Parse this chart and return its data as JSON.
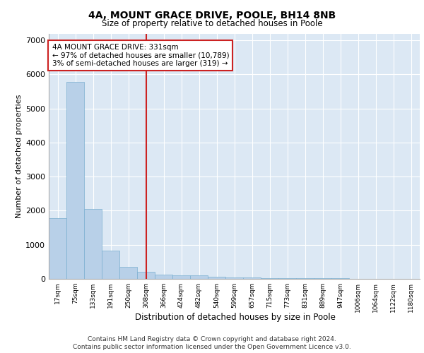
{
  "title_line1": "4A, MOUNT GRACE DRIVE, POOLE, BH14 8NB",
  "title_line2": "Size of property relative to detached houses in Poole",
  "xlabel": "Distribution of detached houses by size in Poole",
  "ylabel": "Number of detached properties",
  "bar_color": "#b8d0e8",
  "bar_edge_color": "#7aafd0",
  "vline_color": "#cc2222",
  "vline_x": 5.5,
  "annotation_text": "4A MOUNT GRACE DRIVE: 331sqm\n← 97% of detached houses are smaller (10,789)\n3% of semi-detached houses are larger (319) →",
  "annotation_box_color": "#cc2222",
  "footer_line1": "Contains HM Land Registry data © Crown copyright and database right 2024.",
  "footer_line2": "Contains public sector information licensed under the Open Government Licence v3.0.",
  "bin_labels": [
    "17sqm",
    "75sqm",
    "133sqm",
    "191sqm",
    "250sqm",
    "308sqm",
    "366sqm",
    "424sqm",
    "482sqm",
    "540sqm",
    "599sqm",
    "657sqm",
    "715sqm",
    "773sqm",
    "831sqm",
    "889sqm",
    "947sqm",
    "1006sqm",
    "1064sqm",
    "1122sqm",
    "1180sqm"
  ],
  "bar_heights": [
    1780,
    5780,
    2060,
    820,
    350,
    200,
    130,
    110,
    100,
    70,
    50,
    40,
    30,
    30,
    25,
    20,
    15,
    10,
    10,
    5,
    5
  ],
  "ylim": [
    0,
    7200
  ],
  "yticks": [
    0,
    1000,
    2000,
    3000,
    4000,
    5000,
    6000,
    7000
  ],
  "background_color": "#dce8f4",
  "grid_color": "#ffffff"
}
